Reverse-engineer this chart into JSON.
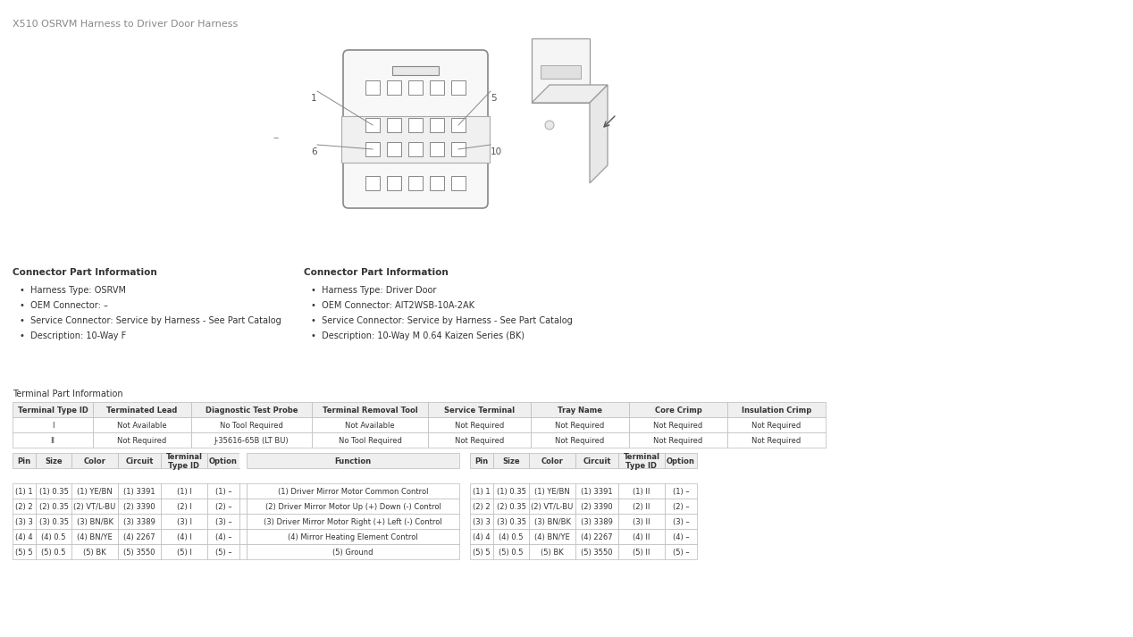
{
  "title": "X510 OSRVM Harness to Driver Door Harness",
  "bg_color": "#ffffff",
  "text_color": "#333333",
  "connector_info_left": {
    "heading": "Connector Part Information",
    "items": [
      "Harness Type: OSRVM",
      "OEM Connector: –",
      "Service Connector: Service by Harness - See Part Catalog",
      "Description: 10-Way F"
    ]
  },
  "connector_info_right": {
    "heading": "Connector Part Information",
    "items": [
      "Harness Type: Driver Door",
      "OEM Connector: AIT2WSB-10A-2AK",
      "Service Connector: Service by Harness - See Part Catalog",
      "Description: 10-Way M 0.64 Kaizen Series (BK)"
    ]
  },
  "terminal_heading": "Terminal Part Information",
  "terminal_headers": [
    "Terminal Type ID",
    "Terminated Lead",
    "Diagnostic Test Probe",
    "Terminal Removal Tool",
    "Service Terminal",
    "Tray Name",
    "Core Crimp",
    "Insulation Crimp"
  ],
  "terminal_rows": [
    [
      "I",
      "Not Available",
      "No Tool Required",
      "Not Available",
      "Not Required",
      "Not Required",
      "Not Required",
      "Not Required"
    ],
    [
      "II",
      "Not Required",
      "J-35616-65B (LT BU)",
      "No Tool Required",
      "Not Required",
      "Not Required",
      "Not Required",
      "Not Required"
    ]
  ],
  "pin_rows": [
    {
      "pin": "(1) 1",
      "size": "(1) 0.35",
      "color": "(1) YE/BN",
      "circuit": "(1) 3391",
      "term_id_l": "(1) I",
      "option_l": "(1) –",
      "function": "(1) Driver Mirror Motor Common Control",
      "term_id_r": "(1) II",
      "option_r": "(1) –"
    },
    {
      "pin": "(2) 2",
      "size": "(2) 0.35",
      "color": "(2) VT/L-BU",
      "circuit": "(2) 3390",
      "term_id_l": "(2) I",
      "option_l": "(2) –",
      "function": "(2) Driver Mirror Motor Up (+) Down (-) Control",
      "term_id_r": "(2) II",
      "option_r": "(2) –"
    },
    {
      "pin": "(3) 3",
      "size": "(3) 0.35",
      "color": "(3) BN/BK",
      "circuit": "(3) 3389",
      "term_id_l": "(3) I",
      "option_l": "(3) –",
      "function": "(3) Driver Mirror Motor Right (+) Left (-) Control",
      "term_id_r": "(3) II",
      "option_r": "(3) –"
    },
    {
      "pin": "(4) 4",
      "size": "(4) 0.5",
      "color": "(4) BN/YE",
      "circuit": "(4) 2267",
      "term_id_l": "(4) I",
      "option_l": "(4) –",
      "function": "(4) Mirror Heating Element Control",
      "term_id_r": "(4) II",
      "option_r": "(4) –"
    },
    {
      "pin": "(5) 5",
      "size": "(5) 0.5",
      "color": "(5) BK",
      "circuit": "(5) 3550",
      "term_id_l": "(5) I",
      "option_l": "(5) –",
      "function": "(5) Ground",
      "term_id_r": "(5) II",
      "option_r": "(5) –"
    }
  ]
}
